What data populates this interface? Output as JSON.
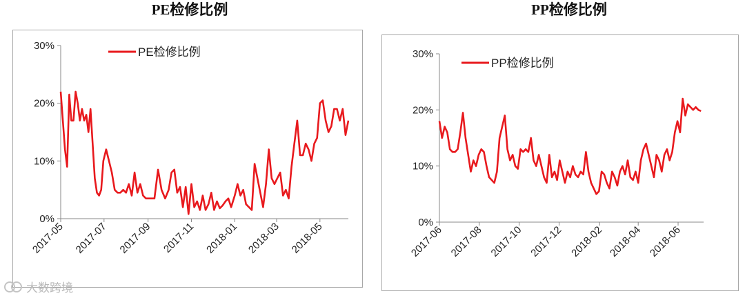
{
  "chart_data": [
    {
      "type": "line",
      "title": "PE检修比例",
      "ylim": [
        0,
        30
      ],
      "yticks": [
        0,
        10,
        20,
        30
      ],
      "ytick_labels": [
        "0%",
        "10%",
        "20%",
        "30%"
      ],
      "xlim": [
        "2017-05",
        "2018-06-10"
      ],
      "xticks": [
        "2017-05",
        "2017-07",
        "2017-09",
        "2017-11",
        "2018-01",
        "2018-03",
        "2018-05"
      ],
      "legend": "top-left",
      "grid": false,
      "color": "#e8191d",
      "series": [
        {
          "name": "PE检修比例",
          "x": [
            "2017-05-01",
            "2017-05-04",
            "2017-05-07",
            "2017-05-10",
            "2017-05-13",
            "2017-05-16",
            "2017-05-19",
            "2017-05-22",
            "2017-05-25",
            "2017-05-28",
            "2017-05-31",
            "2017-06-03",
            "2017-06-06",
            "2017-06-09",
            "2017-06-12",
            "2017-06-15",
            "2017-06-18",
            "2017-06-21",
            "2017-06-24",
            "2017-06-27",
            "2017-06-30",
            "2017-07-04",
            "2017-07-08",
            "2017-07-12",
            "2017-07-16",
            "2017-07-20",
            "2017-07-24",
            "2017-07-28",
            "2017-08-01",
            "2017-08-05",
            "2017-08-09",
            "2017-08-13",
            "2017-08-17",
            "2017-08-21",
            "2017-08-25",
            "2017-08-29",
            "2017-09-02",
            "2017-09-06",
            "2017-09-10",
            "2017-09-15",
            "2017-09-20",
            "2017-09-25",
            "2017-09-30",
            "2017-10-04",
            "2017-10-08",
            "2017-10-12",
            "2017-10-16",
            "2017-10-20",
            "2017-10-24",
            "2017-10-28",
            "2017-11-01",
            "2017-11-05",
            "2017-11-09",
            "2017-11-13",
            "2017-11-17",
            "2017-11-21",
            "2017-11-25",
            "2017-11-29",
            "2017-12-03",
            "2017-12-07",
            "2017-12-11",
            "2017-12-15",
            "2017-12-19",
            "2017-12-23",
            "2017-12-27",
            "2018-01-01",
            "2018-01-05",
            "2018-01-09",
            "2018-01-13",
            "2018-01-17",
            "2018-01-21",
            "2018-01-25",
            "2018-01-29",
            "2018-02-02",
            "2018-02-06",
            "2018-02-10",
            "2018-02-14",
            "2018-02-18",
            "2018-02-22",
            "2018-02-26",
            "2018-03-02",
            "2018-03-06",
            "2018-03-10",
            "2018-03-14",
            "2018-03-18",
            "2018-03-22",
            "2018-03-26",
            "2018-03-30",
            "2018-04-03",
            "2018-04-07",
            "2018-04-11",
            "2018-04-15",
            "2018-04-19",
            "2018-04-23",
            "2018-04-27",
            "2018-05-01",
            "2018-05-05",
            "2018-05-09",
            "2018-05-13",
            "2018-05-17",
            "2018-05-21",
            "2018-05-25",
            "2018-05-29",
            "2018-06-02",
            "2018-06-06",
            "2018-06-10"
          ],
          "y": [
            22,
            17,
            12,
            9,
            21.5,
            17,
            17,
            22,
            20,
            17,
            19,
            17,
            18,
            15,
            19,
            13,
            7,
            4.5,
            4,
            5,
            10,
            12,
            10,
            8,
            5,
            4.5,
            4.5,
            5,
            4.5,
            6,
            4,
            8,
            4.5,
            6,
            4,
            3.5,
            3.5,
            3.5,
            3.5,
            8.5,
            5,
            3.5,
            5,
            8,
            8.5,
            4.5,
            5.5,
            2,
            5.5,
            0.8,
            6,
            2,
            3,
            1.5,
            4,
            1.5,
            2.5,
            4.5,
            1.5,
            3,
            1.8,
            2.3,
            3,
            3.5,
            2,
            4,
            6,
            4,
            5,
            2.5,
            2,
            1.5,
            9.5,
            7,
            4.5,
            2,
            6,
            12,
            7,
            6,
            7,
            8,
            4,
            5,
            3.5,
            9,
            13,
            17,
            11,
            11,
            13,
            12,
            10,
            13,
            14,
            20,
            20.5,
            17,
            15,
            16,
            19,
            19,
            17,
            19,
            14.5,
            17
          ]
        }
      ]
    },
    {
      "type": "line",
      "title": "PP检修比例",
      "ylim": [
        0,
        30
      ],
      "yticks": [
        0,
        10,
        20,
        30
      ],
      "ytick_labels": [
        "0%",
        "10%",
        "20%",
        "30%"
      ],
      "xlim": [
        "2017-06",
        "2018-07-10"
      ],
      "xticks": [
        "2017-06",
        "2017-08",
        "2017-10",
        "2017-12",
        "2018-02",
        "2018-04",
        "2018-06"
      ],
      "legend": "top-left",
      "grid": false,
      "color": "#e8191d",
      "series": [
        {
          "name": "PP检修比例",
          "x": [
            "2017-06-01",
            "2017-06-05",
            "2017-06-09",
            "2017-06-13",
            "2017-06-17",
            "2017-06-21",
            "2017-06-25",
            "2017-06-29",
            "2017-07-03",
            "2017-07-07",
            "2017-07-11",
            "2017-07-15",
            "2017-07-19",
            "2017-07-23",
            "2017-07-27",
            "2017-07-31",
            "2017-08-04",
            "2017-08-08",
            "2017-08-12",
            "2017-08-16",
            "2017-08-20",
            "2017-08-24",
            "2017-08-28",
            "2017-09-01",
            "2017-09-05",
            "2017-09-09",
            "2017-09-13",
            "2017-09-17",
            "2017-09-21",
            "2017-09-25",
            "2017-09-29",
            "2017-10-03",
            "2017-10-07",
            "2017-10-11",
            "2017-10-15",
            "2017-10-19",
            "2017-10-23",
            "2017-10-27",
            "2017-10-31",
            "2017-11-04",
            "2017-11-08",
            "2017-11-12",
            "2017-11-16",
            "2017-11-20",
            "2017-11-24",
            "2017-11-28",
            "2017-12-02",
            "2017-12-06",
            "2017-12-10",
            "2017-12-14",
            "2017-12-18",
            "2017-12-22",
            "2017-12-26",
            "2017-12-30",
            "2018-01-03",
            "2018-01-07",
            "2018-01-11",
            "2018-01-15",
            "2018-01-19",
            "2018-01-23",
            "2018-01-27",
            "2018-01-31",
            "2018-02-04",
            "2018-02-08",
            "2018-02-12",
            "2018-02-16",
            "2018-02-20",
            "2018-02-24",
            "2018-02-28",
            "2018-03-04",
            "2018-03-08",
            "2018-03-12",
            "2018-03-16",
            "2018-03-20",
            "2018-03-24",
            "2018-03-28",
            "2018-04-01",
            "2018-04-05",
            "2018-04-09",
            "2018-04-13",
            "2018-04-17",
            "2018-04-21",
            "2018-04-25",
            "2018-04-29",
            "2018-05-03",
            "2018-05-07",
            "2018-05-11",
            "2018-05-15",
            "2018-05-19",
            "2018-05-23",
            "2018-05-27",
            "2018-05-31",
            "2018-06-04",
            "2018-06-08",
            "2018-06-12",
            "2018-06-16",
            "2018-06-20",
            "2018-06-24",
            "2018-06-28",
            "2018-07-02",
            "2018-07-06"
          ],
          "y": [
            18,
            15,
            17,
            16,
            13,
            12.5,
            12.5,
            13,
            16,
            19.5,
            15,
            12,
            9,
            11,
            10,
            12,
            13,
            12.5,
            10,
            8,
            7.5,
            7,
            9,
            15,
            17,
            19,
            13,
            11,
            12,
            10,
            9.5,
            13,
            12.5,
            13,
            12.5,
            15,
            11,
            10,
            12,
            10,
            8,
            7,
            12,
            8,
            9,
            7.5,
            11,
            9,
            7,
            9,
            8,
            10,
            8.5,
            8,
            9,
            8.5,
            12.5,
            9,
            7,
            6,
            5,
            5.5,
            9,
            8.5,
            7,
            6,
            9,
            8,
            6.5,
            9,
            10,
            8.5,
            11,
            8,
            7.5,
            9,
            7,
            11,
            13,
            14,
            12,
            10,
            8,
            12,
            11,
            9,
            12,
            13,
            11,
            12.5,
            16,
            18,
            16,
            22,
            19,
            21,
            20.5,
            20,
            20.5,
            20,
            19.8
          ]
        }
      ]
    }
  ],
  "watermark": "大数跨境"
}
